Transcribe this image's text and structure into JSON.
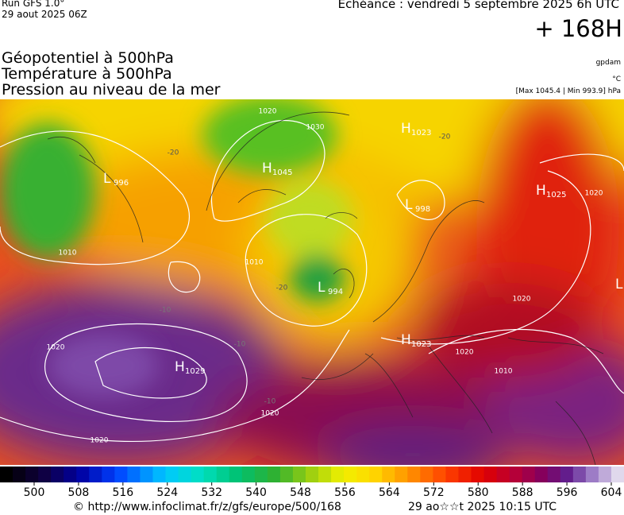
{
  "header": {
    "run": "Run GFS 1.0°",
    "run_date": "29 aout 2025 06Z",
    "valid": "Echéance : vendredi 5 septembre 2025 6h UTC",
    "lead": "+ 168H"
  },
  "titles": [
    "Géopotentiel à 500hPa",
    "Température à 500hPa",
    "Pression au niveau de la mer"
  ],
  "units": [
    "gpdam",
    "°C",
    "[Max 1045.4 | Min 993.9] hPa"
  ],
  "pressure_systems": [
    {
      "letter": "L",
      "value": 996
    },
    {
      "letter": "H",
      "value": 1045
    },
    {
      "letter": "H",
      "value": 1023
    },
    {
      "letter": "L",
      "value": 998
    },
    {
      "letter": "H",
      "value": 1025
    },
    {
      "letter": "L",
      "value": 994
    },
    {
      "letter": "H",
      "value": 1023
    },
    {
      "letter": "H",
      "value": 1029
    },
    {
      "letter": "L"
    }
  ],
  "contour_labels": [
    1020,
    1030,
    1010,
    1010,
    1020,
    1020,
    1020,
    1020,
    1020,
    1010,
    1020,
    -20,
    -20,
    -20,
    -10,
    -10,
    -10
  ],
  "colorbar": {
    "ticks": [
      500,
      508,
      516,
      524,
      532,
      540,
      548,
      556,
      564,
      572,
      580,
      588,
      596,
      604
    ]
  },
  "footer": {
    "source": "© http://www.infoclimat.fr/z/gfs/europe/500/168",
    "generated": "29 ao☆☆t 2025 10:15 UTC"
  }
}
